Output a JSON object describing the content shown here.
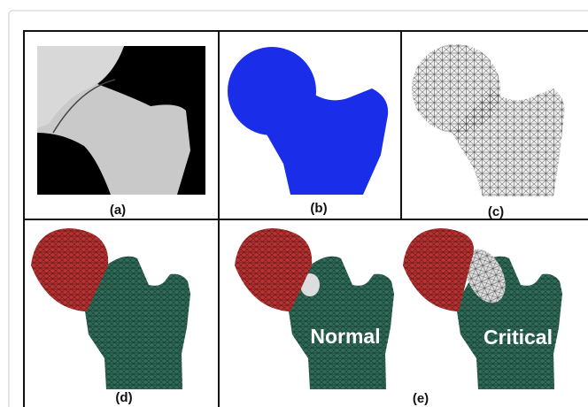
{
  "panels": [
    {
      "label": "(a)"
    },
    {
      "label": "(b)"
    },
    {
      "label": "(c)"
    },
    {
      "label": "(d)"
    },
    {
      "label": "(e)",
      "annotations": [
        "Normal",
        "Critical"
      ]
    }
  ]
}
